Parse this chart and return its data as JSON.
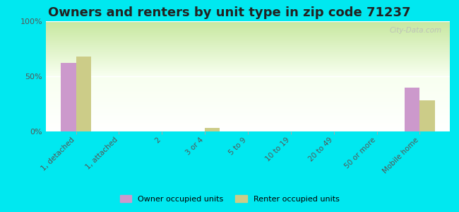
{
  "title": "Owners and renters by unit type in zip code 71237",
  "categories": [
    "1, detached",
    "1, attached",
    "2",
    "3 or 4",
    "5 to 9",
    "10 to 19",
    "20 to 49",
    "50 or more",
    "Mobile home"
  ],
  "owner_values": [
    62,
    0,
    0,
    0,
    0,
    0,
    0,
    0,
    40
  ],
  "renter_values": [
    68,
    0,
    0,
    3,
    0,
    0,
    0,
    0,
    28
  ],
  "owner_color": "#cc99cc",
  "renter_color": "#cccc88",
  "background_color": "#00e8f0",
  "title_fontsize": 13,
  "ylabel_ticks": [
    "0%",
    "50%",
    "100%"
  ],
  "ytick_values": [
    0,
    50,
    100
  ],
  "ylim": [
    0,
    100
  ],
  "bar_width": 0.35,
  "watermark": "City-Data.com"
}
